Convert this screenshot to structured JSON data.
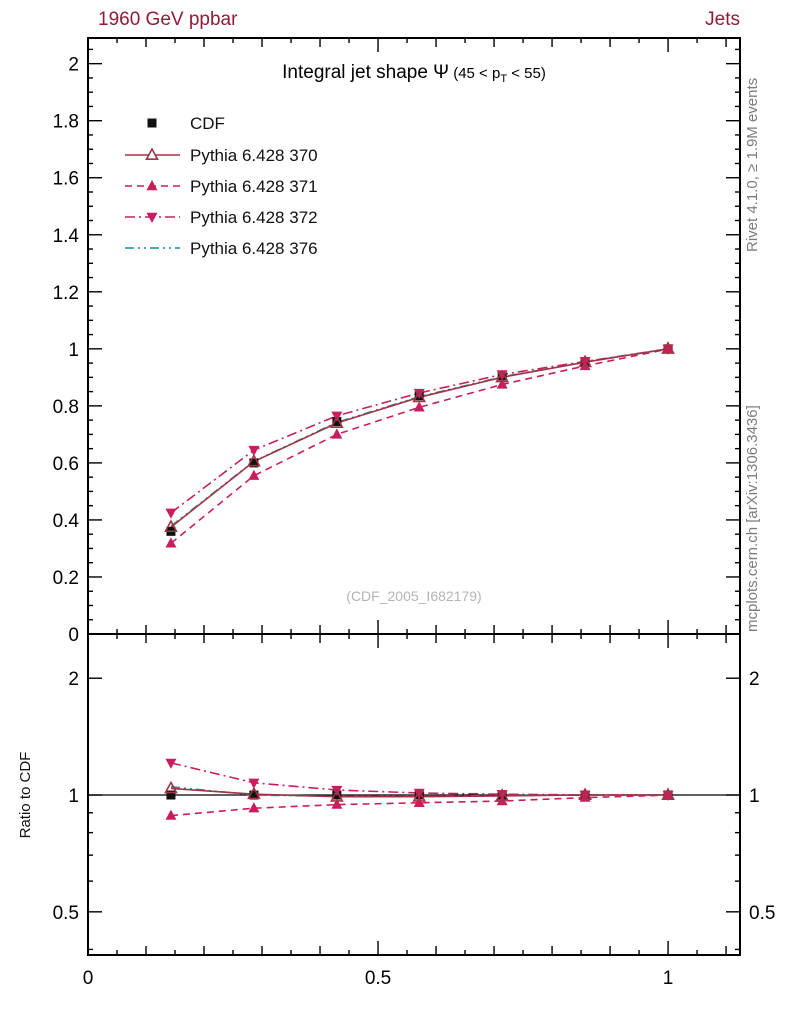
{
  "header": {
    "left": "1960 GeV ppbar",
    "right": "Jets"
  },
  "side_right": {
    "rivet": "Rivet 4.1.0, ≥ 1.9M events",
    "mcplots": "mcplots.cern.ch [arXiv:1306.3436]"
  },
  "watermark": "(CDF_2005_I682179)",
  "ratio_label": "Ratio to CDF",
  "colors": {
    "header": "#8f1d35",
    "frame": "#000000",
    "side_text": "#7d7d7d",
    "watermark": "#b4b4b4"
  },
  "chart_data": {
    "type": "line",
    "title_parts": {
      "main": "Integral jet shape Ψ",
      "pre": " (45 < p",
      "sub": "T",
      "post": " < 55)"
    },
    "x": [
      0.143,
      0.286,
      0.429,
      0.571,
      0.714,
      0.857,
      1.0
    ],
    "xlim": [
      0,
      1.124
    ],
    "main_ylim": [
      0,
      2.09
    ],
    "ratio_ylim": [
      0.387,
      2.6
    ],
    "x_ticks": [
      0,
      0.5,
      1
    ],
    "main_yticks": [
      0,
      0.2,
      0.4,
      0.6,
      0.8,
      1.0,
      1.2,
      1.4,
      1.6,
      1.8,
      2.0
    ],
    "ratio_yticks": [
      0.5,
      1,
      2
    ],
    "ratio_minor_ticks": [
      0.4,
      0.6,
      0.7,
      0.8,
      0.9
    ],
    "ratio_reference": 1.0,
    "legend_position": "top-left",
    "series": [
      {
        "name": "CDF",
        "color": "#111111",
        "marker": "square",
        "line": "none",
        "values": [
          0.36,
          0.6,
          0.745,
          0.835,
          0.905,
          0.955,
          1.0
        ],
        "ratio": [
          1.0,
          1.0,
          1.0,
          1.0,
          1.0,
          1.0,
          1.0
        ]
      },
      {
        "name": "Pythia 6.428 370",
        "color": "#a03545",
        "marker": "triangle-open",
        "line": "solid",
        "values": [
          0.375,
          0.605,
          0.74,
          0.83,
          0.9,
          0.953,
          1.0
        ],
        "ratio": [
          1.04,
          1.005,
          0.99,
          0.99,
          0.995,
          1.0,
          1.0
        ]
      },
      {
        "name": "Pythia 6.428 371",
        "color": "#c81e5f",
        "marker": "triangle-up",
        "line": "dashed",
        "values": [
          0.318,
          0.555,
          0.7,
          0.795,
          0.875,
          0.94,
          0.999
        ],
        "ratio": [
          0.885,
          0.925,
          0.945,
          0.955,
          0.965,
          0.985,
          0.999
        ]
      },
      {
        "name": "Pythia 6.428 372",
        "color": "#c81e5f",
        "marker": "triangle-down",
        "line": "dashdot",
        "values": [
          0.425,
          0.645,
          0.765,
          0.845,
          0.91,
          0.956,
          1.0
        ],
        "ratio": [
          1.21,
          1.075,
          1.03,
          1.012,
          1.005,
          1.001,
          1.0
        ]
      },
      {
        "name": "Pythia 6.428 376",
        "color": "#0e9488",
        "marker": "none",
        "line": "dashdotdot",
        "values": [
          0.378,
          0.606,
          0.742,
          0.832,
          0.902,
          0.954,
          1.0
        ],
        "ratio": [
          1.05,
          1.0,
          0.992,
          0.993,
          0.997,
          1.0,
          1.0
        ]
      }
    ]
  }
}
